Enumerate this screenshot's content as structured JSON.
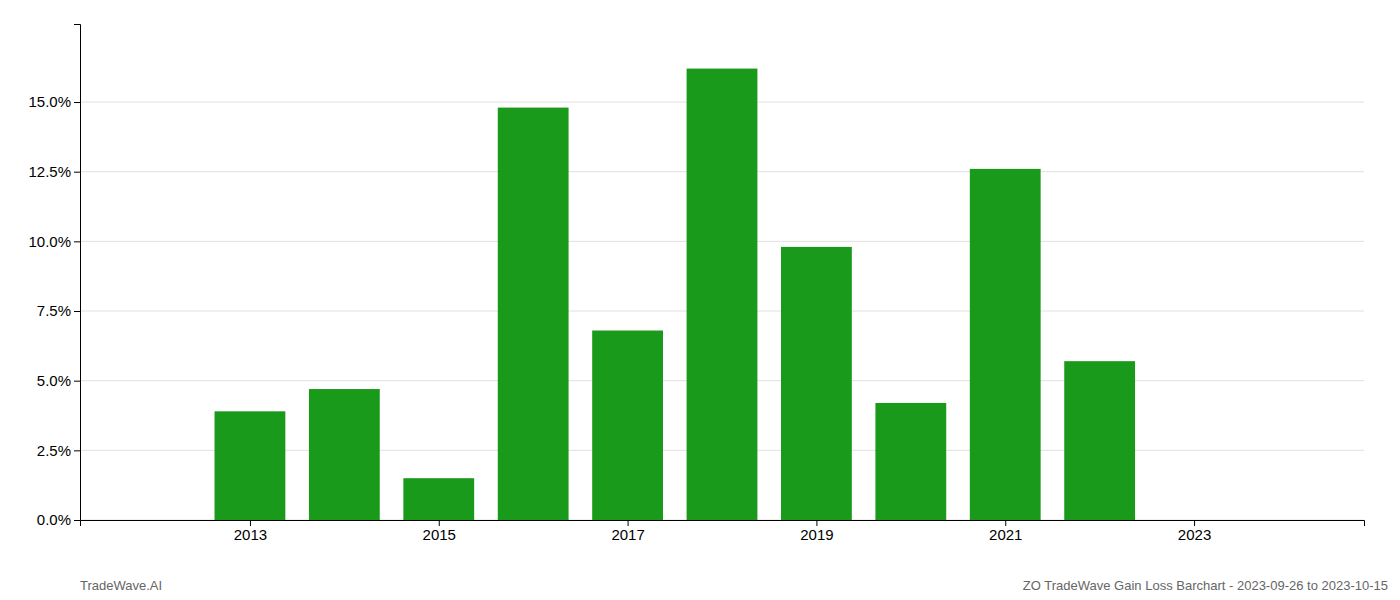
{
  "chart_data": {
    "type": "bar",
    "x": [
      2013,
      2014,
      2015,
      2016,
      2017,
      2018,
      2019,
      2020,
      2021,
      2022
    ],
    "values": [
      0.039,
      0.047,
      0.015,
      0.148,
      0.068,
      0.162,
      0.098,
      0.042,
      0.126,
      0.057
    ],
    "color": "#1a9a1a",
    "xlim": [
      2011.2,
      2024.8
    ],
    "xticks": [
      2013,
      2015,
      2017,
      2019,
      2021,
      2023
    ],
    "ylim": [
      0,
      0.178
    ],
    "yticks": [
      {
        "value": 0.0,
        "label": "0.0%"
      },
      {
        "value": 0.025,
        "label": "2.5%"
      },
      {
        "value": 0.05,
        "label": "5.0%"
      },
      {
        "value": 0.075,
        "label": "7.5%"
      },
      {
        "value": 0.1,
        "label": "10.0%"
      },
      {
        "value": 0.125,
        "label": "12.5%"
      },
      {
        "value": 0.15,
        "label": "15.0%"
      }
    ],
    "grid": true,
    "annotations": [
      "TradeWave.AI",
      "ZO TradeWave Gain Loss Barchart - 2023-09-26 to 2023-10-15"
    ]
  }
}
